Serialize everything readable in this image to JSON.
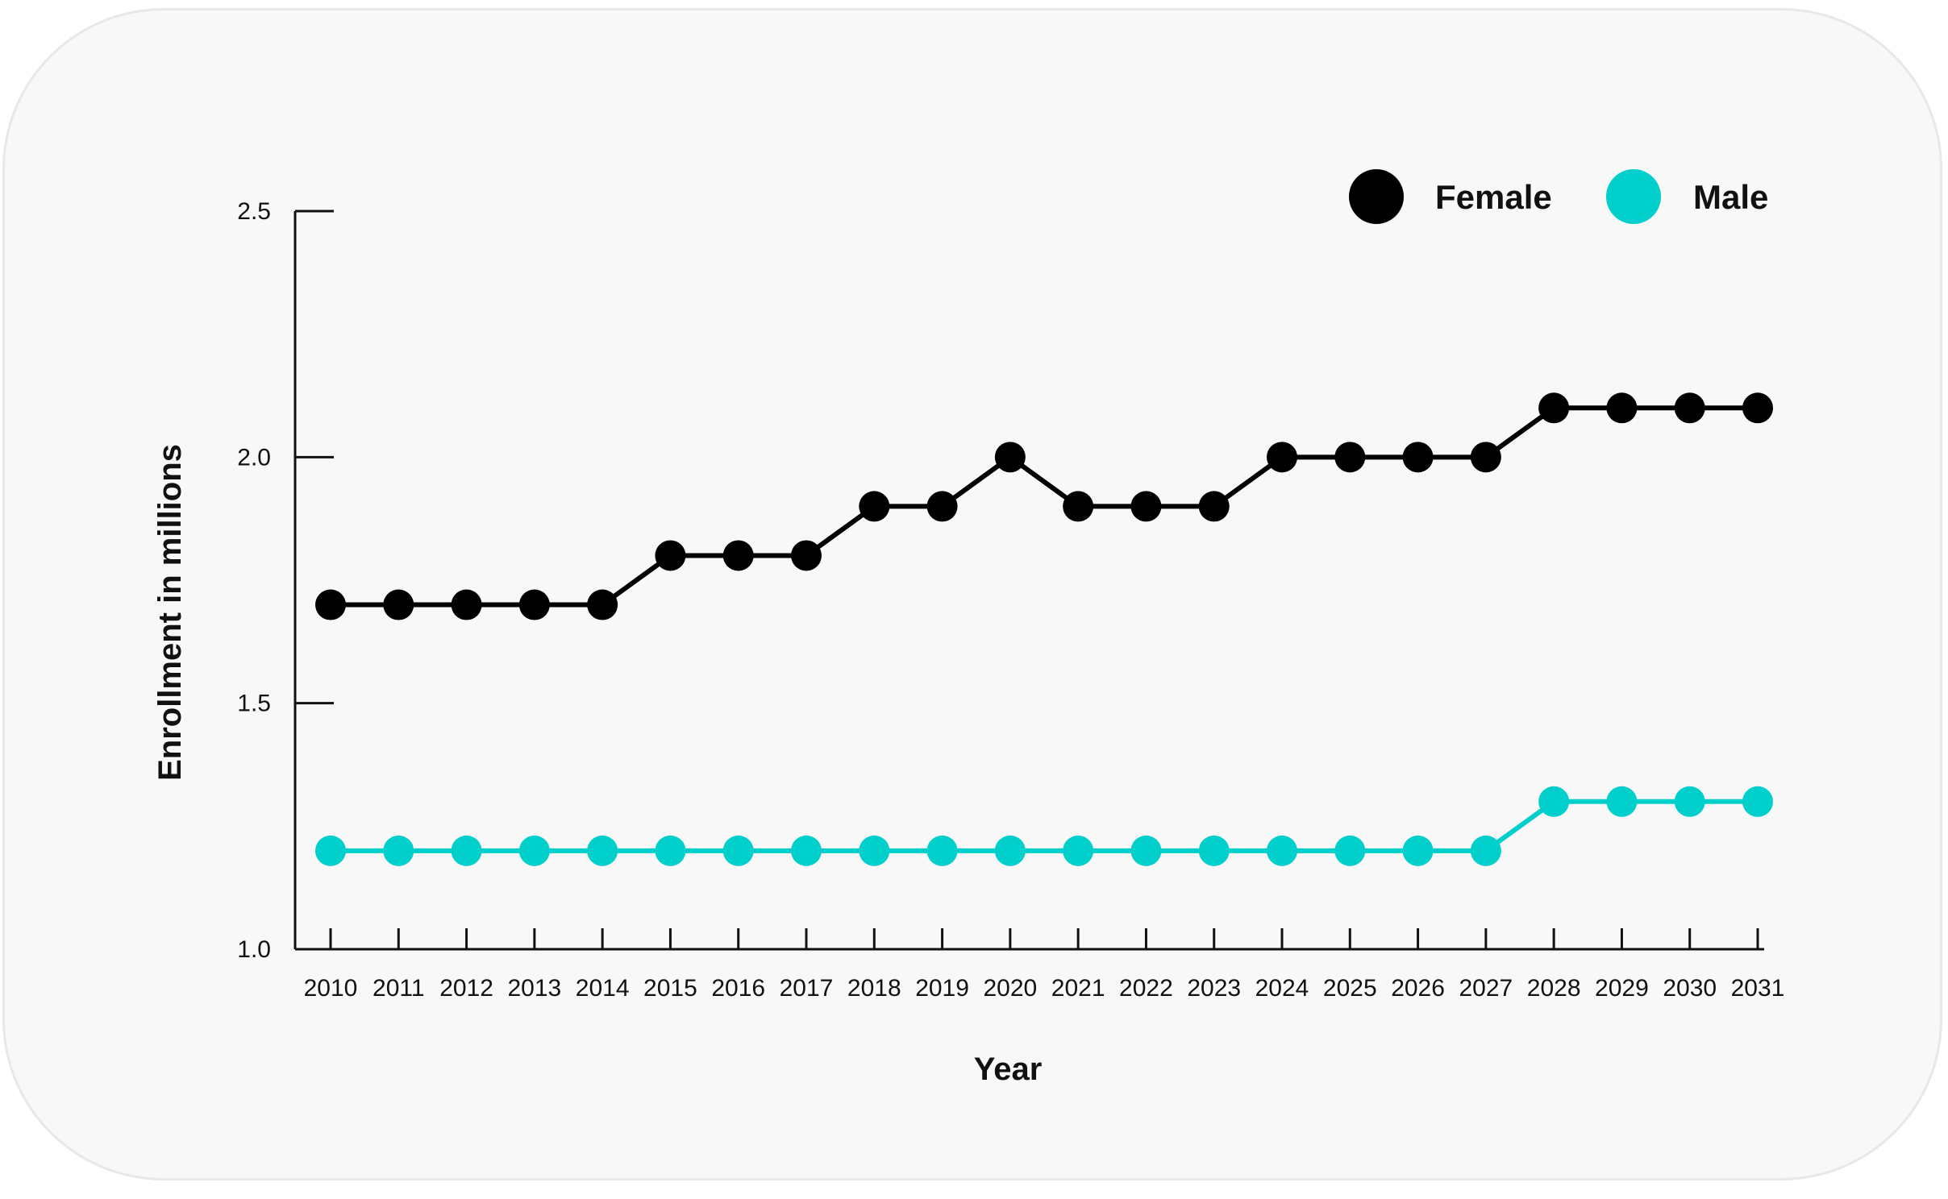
{
  "colors": {
    "female": "#000000",
    "male": "#00cfcb",
    "axis": "#111111"
  },
  "chart_data": {
    "type": "line",
    "xlabel": "Year",
    "ylabel": "Enrollment in millions",
    "ylim": [
      1.0,
      2.5
    ],
    "yticks": [
      "1.0",
      "1.5",
      "2.0",
      "2.5"
    ],
    "x": [
      "2010",
      "2011",
      "2012",
      "2013",
      "2014",
      "2015",
      "2016",
      "2017",
      "2018",
      "2019",
      "2020",
      "2021",
      "2022",
      "2023",
      "2024",
      "2025",
      "2026",
      "2027",
      "2028",
      "2029",
      "2030",
      "2031"
    ],
    "legend_position": "top-right",
    "grid": false,
    "series": [
      {
        "name": "Female",
        "color": "#000000",
        "values": [
          1.7,
          1.7,
          1.7,
          1.7,
          1.7,
          1.8,
          1.8,
          1.8,
          1.9,
          1.9,
          2.0,
          1.9,
          1.9,
          1.9,
          2.0,
          2.0,
          2.0,
          2.0,
          2.1,
          2.1,
          2.1,
          2.1
        ]
      },
      {
        "name": "Male",
        "color": "#00cfcb",
        "values": [
          1.2,
          1.2,
          1.2,
          1.2,
          1.2,
          1.2,
          1.2,
          1.2,
          1.2,
          1.2,
          1.2,
          1.2,
          1.2,
          1.2,
          1.2,
          1.2,
          1.2,
          1.2,
          1.3,
          1.3,
          1.3,
          1.3
        ]
      }
    ]
  }
}
